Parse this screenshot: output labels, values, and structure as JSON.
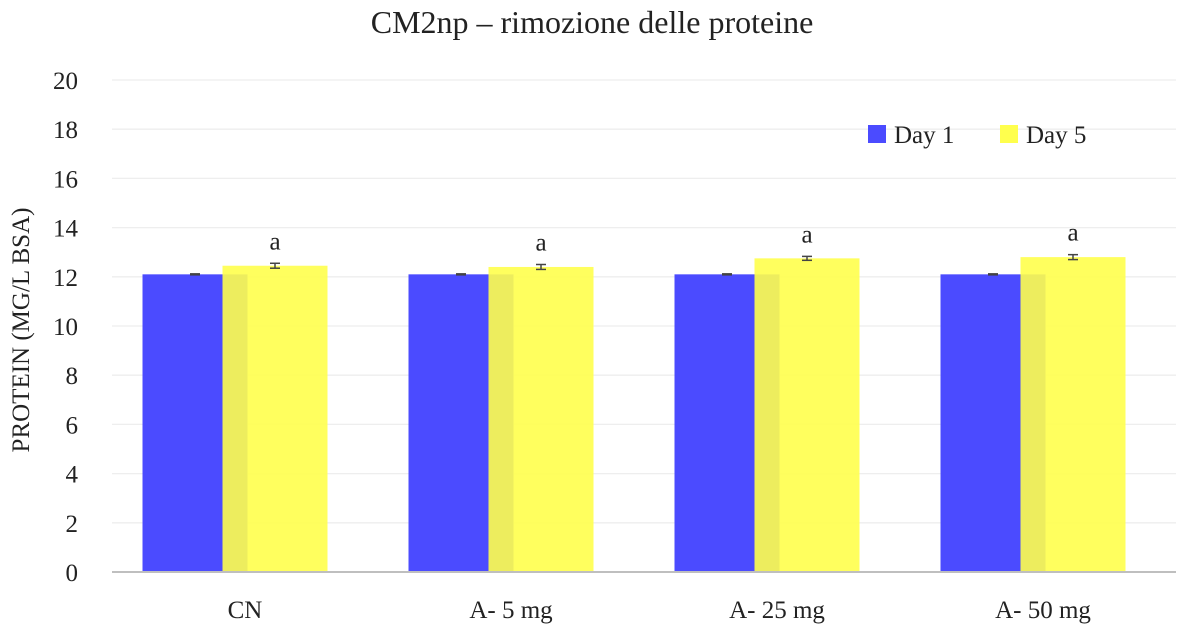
{
  "chart_data": {
    "type": "bar",
    "title": "CM2np – rimozione delle proteine",
    "xlabel": "",
    "ylabel": "PROTEIN (MG/L BSA)",
    "ylim": [
      0,
      20
    ],
    "yticks": [
      "0",
      "2",
      "4",
      "6",
      "8",
      "10",
      "12",
      "14",
      "16",
      "18",
      "20"
    ],
    "grid": true,
    "legend_position": "top-right",
    "categories": [
      "CN",
      "A- 5 mg",
      "A- 25 mg",
      "A- 50 mg"
    ],
    "series": [
      {
        "name": "Day 1",
        "color": "#4b4bff",
        "values": [
          12.1,
          12.1,
          12.1,
          12.1
        ],
        "errors": [
          0.02,
          0.02,
          0.02,
          0.02
        ],
        "labels": [
          "",
          "",
          "",
          ""
        ]
      },
      {
        "name": "Day 5",
        "color": "#ffff4d",
        "values": [
          12.45,
          12.4,
          12.75,
          12.8
        ],
        "errors": [
          0.1,
          0.1,
          0.08,
          0.1
        ],
        "labels": [
          "a",
          "a",
          "a",
          "a"
        ]
      }
    ]
  }
}
